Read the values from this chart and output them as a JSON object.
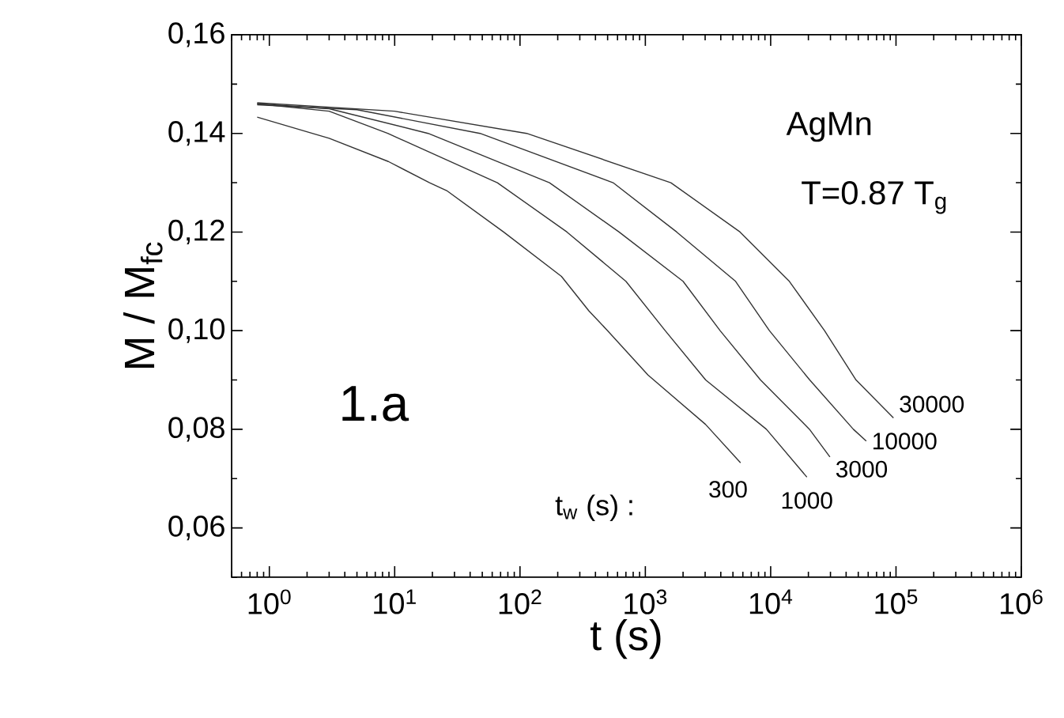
{
  "chart_data": {
    "type": "line",
    "xlabel": "t  (s)",
    "ylabel": "M / M$_{fc}$",
    "log": "x",
    "xlim": [
      0.5,
      1000000
    ],
    "ylim": [
      0.05,
      0.16
    ],
    "xticks": [
      {
        "value": 1,
        "label": "10$^{0}$"
      },
      {
        "value": 10,
        "label": "10$^{1}$"
      },
      {
        "value": 100,
        "label": "10$^{2}$"
      },
      {
        "value": 1000,
        "label": "10$^{3}$"
      },
      {
        "value": 10000,
        "label": "10$^{4}$"
      },
      {
        "value": 100000,
        "label": "10$^{5}$"
      },
      {
        "value": 1000000,
        "label": "10$^{6}$"
      }
    ],
    "yticks": [
      {
        "value": 0.05,
        "label": null
      },
      {
        "value": 0.06,
        "label": "0,06"
      },
      {
        "value": 0.07,
        "label": null
      },
      {
        "value": 0.08,
        "label": "0,08"
      },
      {
        "value": 0.09,
        "label": null
      },
      {
        "value": 0.1,
        "label": "0,10"
      },
      {
        "value": 0.11,
        "label": null
      },
      {
        "value": 0.12,
        "label": "0,12"
      },
      {
        "value": 0.13,
        "label": null
      },
      {
        "value": 0.14,
        "label": "0,14"
      },
      {
        "value": 0.15,
        "label": null
      },
      {
        "value": 0.16,
        "label": "0,16"
      }
    ],
    "grid": false,
    "marker": "none",
    "line_style": "solid",
    "series": [
      {
        "name": "300",
        "color": "#333333",
        "x": [
          0.8,
          2.2,
          3,
          8.9,
          19,
          26,
          74,
          214,
          355,
          500,
          1050,
          3020,
          5750
        ],
        "values": [
          0.1433,
          0.14,
          0.139,
          0.1343,
          0.13,
          0.1284,
          0.12,
          0.111,
          0.104,
          0.1,
          0.091,
          0.081,
          0.0732
        ]
      },
      {
        "name": "1000",
        "color": "#333333",
        "x": [
          0.8,
          3,
          8.8,
          66,
          237,
          700,
          1440,
          3030,
          9250,
          19450
        ],
        "values": [
          0.146,
          0.1445,
          0.14,
          0.13,
          0.12,
          0.11,
          0.1,
          0.09,
          0.08,
          0.0703
        ]
      },
      {
        "name": "3000",
        "color": "#333333",
        "x": [
          0.8,
          3,
          18.5,
          172,
          617,
          2000,
          3950,
          8300,
          20400,
          29700
        ],
        "values": [
          0.146,
          0.145,
          0.14,
          0.13,
          0.12,
          0.11,
          0.1,
          0.09,
          0.08,
          0.0744
        ]
      },
      {
        "name": "10000",
        "color": "#333333",
        "x": [
          0.8,
          5,
          48,
          553,
          1780,
          5250,
          9770,
          20500,
          45700,
          57900
        ],
        "values": [
          0.1458,
          0.1448,
          0.14,
          0.13,
          0.12,
          0.11,
          0.1,
          0.09,
          0.08,
          0.0776
        ]
      },
      {
        "name": "30000",
        "color": "#333333",
        "x": [
          0.8,
          10,
          113,
          1600,
          5700,
          14100,
          26900,
          48000,
          95500
        ],
        "values": [
          0.1462,
          0.1445,
          0.14,
          0.13,
          0.12,
          0.11,
          0.1,
          0.09,
          0.0823
        ]
      }
    ],
    "annotations": [
      "1.a",
      "AgMn",
      "T=0.87 T$_{g}$",
      "t$_{w}$ (s) :"
    ]
  }
}
